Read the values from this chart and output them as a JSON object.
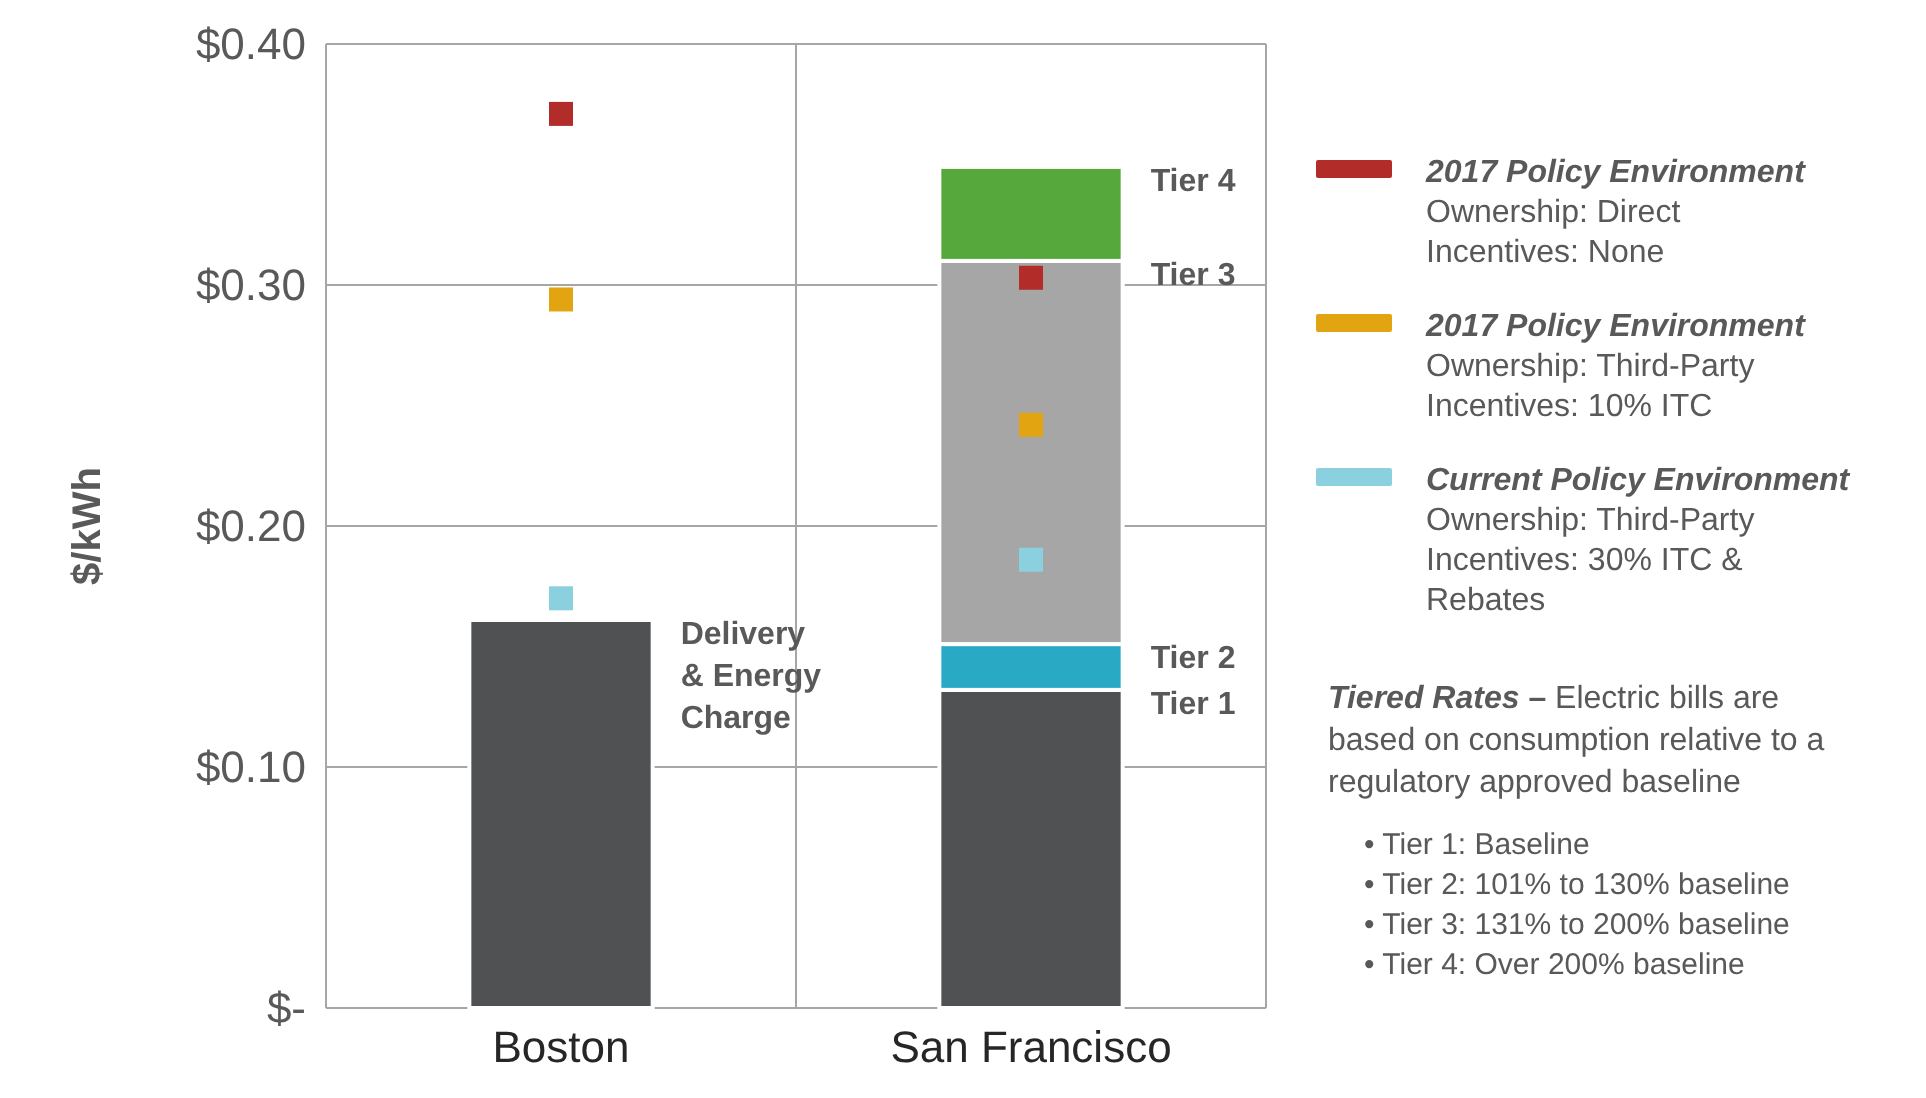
{
  "chart_data": {
    "type": "bar",
    "stacked": true,
    "ylabel": "$/kWh",
    "categories": [
      "Boston",
      "San Francisco"
    ],
    "ylim": [
      0,
      0.4
    ],
    "yticks": [
      {
        "value": 0,
        "label": "$-"
      },
      {
        "value": 0.1,
        "label": "$0.10"
      },
      {
        "value": 0.2,
        "label": "$0.20"
      },
      {
        "value": 0.3,
        "label": "$0.30"
      },
      {
        "value": 0.4,
        "label": "$0.40"
      }
    ],
    "grid": "y",
    "legend": "right",
    "marker": "square",
    "series": [
      {
        "name": "Delivery\n& Energy\nCharge",
        "color": "#505153",
        "values": [
          0.161,
          null
        ]
      },
      {
        "name": "Tier 1",
        "color": "#505153",
        "values": [
          null,
          0.132
        ]
      },
      {
        "name": "Tier 2",
        "color": "#2aa9c4",
        "values": [
          null,
          0.019
        ]
      },
      {
        "name": "Tier 3",
        "color": "#a6a6a6",
        "values": [
          null,
          0.159
        ]
      },
      {
        "name": "Tier 4",
        "color": "#56a83c",
        "values": [
          null,
          0.039
        ]
      },
      {
        "type": "scatter",
        "name": "2017 Policy Environment\nOwnership: Direct\nIncentives: None",
        "color": "#b22c2a",
        "x": [
          "Boston",
          "San Francisco"
        ],
        "values": [
          0.371,
          0.303
        ]
      },
      {
        "type": "scatter",
        "name": "2017 Policy Environment\nOwnership: Third-Party\nIncentives: 10% ITC",
        "color": "#e2a511",
        "x": [
          "Boston",
          "San Francisco"
        ],
        "values": [
          0.294,
          0.242
        ]
      },
      {
        "type": "scatter",
        "name": "Current Policy Environment\nOwnership: Third-Party\nIncentives: 30% ITC &\nRebates",
        "color": "#8ad0de",
        "x": [
          "Boston",
          "San Francisco"
        ],
        "values": [
          0.17,
          0.186
        ]
      }
    ],
    "annotations": [
      "Tiered Rates – Electric bills are based on consumption relative to a regulatory approved baseline",
      "•  Tier 1: Baseline",
      "•  Tier 2: 101% to 130% baseline",
      "•  Tier 3: 131% to 200% baseline",
      "•  Tier 4: Over 200% baseline"
    ]
  }
}
